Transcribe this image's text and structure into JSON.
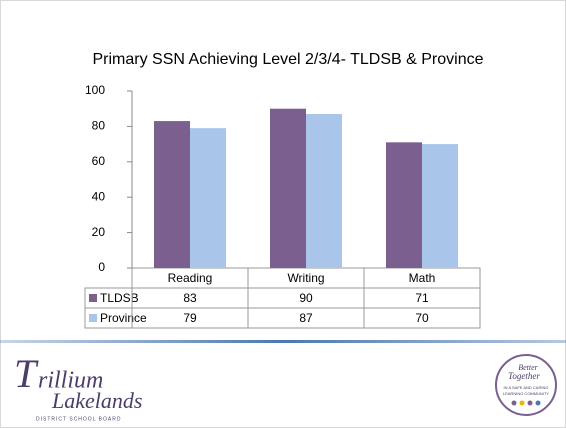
{
  "chart_data": {
    "type": "bar",
    "title": "Primary SSN Achieving Level 2/3/4- TLDSB & Province",
    "categories": [
      "Reading",
      "Writing",
      "Math"
    ],
    "series": [
      {
        "name": "TLDSB",
        "color": "#7b5f8f",
        "values": [
          83,
          90,
          71
        ]
      },
      {
        "name": "Province",
        "color": "#a9c5ea",
        "values": [
          79,
          87,
          70
        ]
      }
    ],
    "ylim": [
      0,
      100
    ],
    "yticks": [
      0,
      20,
      40,
      60,
      80,
      100
    ],
    "grid": false
  },
  "footer": {
    "logo_line1": "rillium",
    "logo_line2": "Lakelands",
    "logo_sub": "DISTRICT SCHOOL BOARD",
    "badge_title1": "Better",
    "badge_title2": "Together",
    "badge_line1": "IN A SAFE AND CARING",
    "badge_line2": "LEARNING COMMUNITY"
  }
}
